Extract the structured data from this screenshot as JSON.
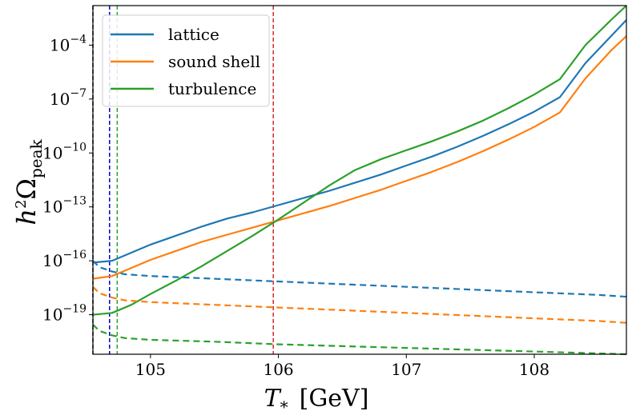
{
  "chart_data": {
    "type": "line",
    "title": "",
    "xlabel": {
      "symbol": "T",
      "subscript": "*",
      "unit": "[GeV]"
    },
    "ylabel": {
      "prefix": "h",
      "sup": "2",
      "symbol": "Ω",
      "subscript": "peak"
    },
    "xlim": [
      104.55,
      108.72
    ],
    "ylim_log10": [
      -21.2,
      -1.8
    ],
    "x_ticks": [
      {
        "value": 105,
        "label": "105"
      },
      {
        "value": 106,
        "label": "106"
      },
      {
        "value": 107,
        "label": "107"
      },
      {
        "value": 108,
        "label": "108"
      }
    ],
    "y_ticks": [
      {
        "exp": -19,
        "base": "10",
        "sup": "−19"
      },
      {
        "exp": -16,
        "base": "10",
        "sup": "−16"
      },
      {
        "exp": -13,
        "base": "10",
        "sup": "−13"
      },
      {
        "exp": -10,
        "base": "10",
        "sup": "−10"
      },
      {
        "exp": -7,
        "base": "10",
        "sup": "−7"
      },
      {
        "exp": -4,
        "base": "10",
        "sup": "−4"
      }
    ],
    "legend": {
      "position": "top-left",
      "entries": [
        {
          "label": "lattice",
          "color": "#1f77b4"
        },
        {
          "label": "sound shell",
          "color": "#ff7f0e"
        },
        {
          "label": "turbulence",
          "color": "#2ca02c"
        }
      ]
    },
    "series": [
      {
        "name": "lattice",
        "style": "solid",
        "color": "#1f77b4",
        "x": [
          104.55,
          104.7,
          104.85,
          105.0,
          105.2,
          105.4,
          105.6,
          105.8,
          106.0,
          106.2,
          106.4,
          106.6,
          106.8,
          107.0,
          107.2,
          107.4,
          107.6,
          107.8,
          108.0,
          108.2,
          108.4,
          108.6,
          108.72
        ],
        "y_log10": [
          -16.1,
          -16.0,
          -15.55,
          -15.1,
          -14.6,
          -14.1,
          -13.65,
          -13.3,
          -12.9,
          -12.5,
          -12.1,
          -11.65,
          -11.2,
          -10.7,
          -10.2,
          -9.65,
          -9.05,
          -8.4,
          -7.7,
          -6.9,
          -5.0,
          -3.5,
          -2.6
        ]
      },
      {
        "name": "sound shell",
        "style": "solid",
        "color": "#ff7f0e",
        "x": [
          104.55,
          104.7,
          104.85,
          105.0,
          105.2,
          105.4,
          105.6,
          105.8,
          106.0,
          106.2,
          106.4,
          106.6,
          106.8,
          107.0,
          107.2,
          107.4,
          107.6,
          107.8,
          108.0,
          108.2,
          108.4,
          108.6,
          108.72
        ],
        "y_log10": [
          -17.0,
          -16.85,
          -16.4,
          -15.95,
          -15.45,
          -14.95,
          -14.55,
          -14.15,
          -13.75,
          -13.35,
          -12.95,
          -12.5,
          -12.05,
          -11.55,
          -11.05,
          -10.5,
          -9.9,
          -9.25,
          -8.55,
          -7.75,
          -5.85,
          -4.3,
          -3.5
        ]
      },
      {
        "name": "turbulence",
        "style": "solid",
        "color": "#2ca02c",
        "x": [
          104.55,
          104.7,
          104.85,
          105.0,
          105.2,
          105.4,
          105.6,
          105.8,
          106.0,
          106.2,
          106.4,
          106.6,
          106.8,
          107.0,
          107.2,
          107.4,
          107.6,
          107.8,
          108.0,
          108.2,
          108.4,
          108.6,
          108.72
        ],
        "y_log10": [
          -19.0,
          -18.9,
          -18.45,
          -17.85,
          -17.1,
          -16.3,
          -15.45,
          -14.6,
          -13.7,
          -12.75,
          -11.8,
          -10.95,
          -10.35,
          -9.85,
          -9.35,
          -8.8,
          -8.2,
          -7.5,
          -6.75,
          -5.9,
          -4.0,
          -2.6,
          -1.8
        ]
      },
      {
        "name": "lattice (dashed)",
        "style": "dashed",
        "color": "#1f77b4",
        "x": [
          104.55,
          104.6,
          104.7,
          104.8,
          105.0,
          105.5,
          106.0,
          106.5,
          107.0,
          107.5,
          108.0,
          108.5,
          108.72
        ],
        "y_log10": [
          -16.0,
          -16.35,
          -16.6,
          -16.75,
          -16.85,
          -17.0,
          -17.15,
          -17.3,
          -17.45,
          -17.6,
          -17.75,
          -17.9,
          -18.0
        ]
      },
      {
        "name": "sound shell (dashed)",
        "style": "dashed",
        "color": "#ff7f0e",
        "x": [
          104.55,
          104.6,
          104.7,
          104.8,
          105.0,
          105.5,
          106.0,
          106.5,
          107.0,
          107.5,
          108.0,
          108.5,
          108.72
        ],
        "y_log10": [
          -17.45,
          -17.8,
          -18.05,
          -18.2,
          -18.3,
          -18.45,
          -18.6,
          -18.75,
          -18.9,
          -19.05,
          -19.2,
          -19.35,
          -19.45
        ]
      },
      {
        "name": "turbulence (dashed)",
        "style": "dashed",
        "color": "#2ca02c",
        "x": [
          104.55,
          104.6,
          104.7,
          104.8,
          105.0,
          105.5,
          106.0,
          106.5,
          107.0,
          107.5,
          108.0,
          108.5,
          108.72
        ],
        "y_log10": [
          -19.55,
          -19.9,
          -20.15,
          -20.3,
          -20.4,
          -20.5,
          -20.65,
          -20.75,
          -20.85,
          -20.95,
          -21.05,
          -21.15,
          -21.2
        ]
      }
    ],
    "vertical_lines": [
      {
        "x": 104.55,
        "color": "#000000",
        "style": "dashed"
      },
      {
        "x": 104.68,
        "color": "#0000cc",
        "style": "dashed"
      },
      {
        "x": 104.74,
        "color": "#2ca02c",
        "style": "dashed"
      },
      {
        "x": 105.96,
        "color": "#d62728",
        "style": "dashed"
      }
    ]
  }
}
